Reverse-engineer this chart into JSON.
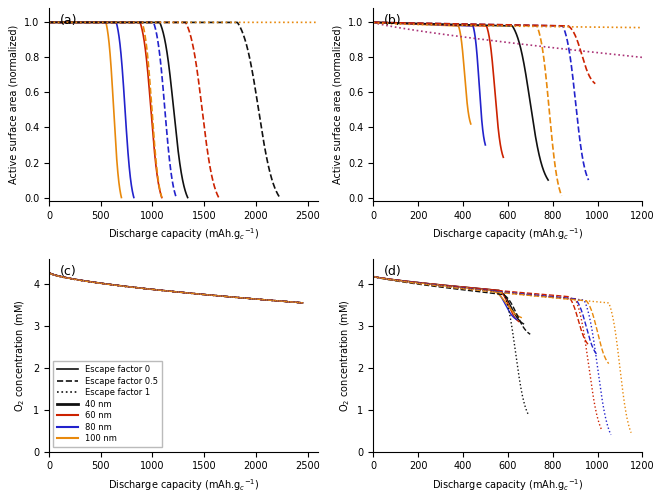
{
  "panel_a": {
    "title": "(a)",
    "xlabel": "Discharge capacity (mAh.g$_c$$^{-1}$)",
    "ylabel": "Active surface area (normalized)",
    "xlim": [
      0,
      2600
    ],
    "ylim": [
      -0.02,
      1.08
    ],
    "xticks": [
      0,
      500,
      1000,
      1500,
      2000,
      2500
    ],
    "yticks": [
      0.0,
      0.2,
      0.4,
      0.6,
      0.8,
      1.0
    ],
    "curves": [
      {
        "color": "#e8890c",
        "ls": "solid",
        "ds": 550,
        "de": 700
      },
      {
        "color": "#2222cc",
        "ls": "solid",
        "ds": 650,
        "de": 820
      },
      {
        "color": "#cc2200",
        "ls": "solid",
        "ds": 880,
        "de": 1090
      },
      {
        "color": "#111111",
        "ls": "solid",
        "ds": 1070,
        "de": 1340
      },
      {
        "color": "#e8890c",
        "ls": "dashed",
        "ds": 900,
        "de": 1090
      },
      {
        "color": "#2222cc",
        "ls": "dashed",
        "ds": 1010,
        "de": 1230
      },
      {
        "color": "#cc2200",
        "ls": "dashed",
        "ds": 1320,
        "de": 1640
      },
      {
        "color": "#111111",
        "ls": "dashed",
        "ds": 1820,
        "de": 2230
      },
      {
        "color": "#e8890c",
        "ls": "dotted",
        "ds": 9999,
        "de": 9999
      }
    ]
  },
  "panel_b": {
    "title": "(b)",
    "xlabel": "Discharge capacity (mAh.g$_c$$^{-1}$)",
    "ylabel": "Active surface area (normalized)",
    "xlim": [
      0,
      1200
    ],
    "ylim": [
      -0.02,
      1.08
    ],
    "xticks": [
      0,
      200,
      400,
      600,
      800,
      1000,
      1200
    ],
    "yticks": [
      0.0,
      0.2,
      0.4,
      0.6,
      0.8,
      1.0
    ],
    "curves_solid": [
      {
        "color": "#e8890c",
        "ds": 380,
        "de": 435,
        "y_end": 0.42
      },
      {
        "color": "#2222cc",
        "ds": 445,
        "de": 500,
        "y_end": 0.3
      },
      {
        "color": "#cc2200",
        "ds": 505,
        "de": 580,
        "y_end": 0.23
      },
      {
        "color": "#111111",
        "ds": 620,
        "de": 780,
        "y_end": 0.1
      }
    ],
    "curves_dashed": [
      {
        "color": "#e8890c",
        "ds": 730,
        "de": 840,
        "y_end": 0.01
      },
      {
        "color": "#2222cc",
        "ds": 845,
        "de": 960,
        "y_end": 0.1
      },
      {
        "color": "#cc2200",
        "ds": 870,
        "de": 990,
        "y_end": 0.65
      }
    ],
    "curves_dotted": [
      {
        "color": "#aa3377",
        "ds": 0,
        "de": 1200,
        "y_end": 0.8
      },
      {
        "color": "#e8890c",
        "ds": 0,
        "de": 1200,
        "y_end": 0.97
      }
    ]
  },
  "panel_c": {
    "title": "(c)",
    "xlabel": "Discharge capacity (mAh.g$_c$$^{-1}$)",
    "ylabel": "O$_2$ concentration (mM)",
    "xlim": [
      0,
      2600
    ],
    "ylim": [
      0,
      4.6
    ],
    "xticks": [
      0,
      500,
      1000,
      1500,
      2000,
      2500
    ],
    "yticks": [
      0,
      1,
      2,
      3,
      4
    ],
    "y_start": 4.28,
    "y_end": 3.55,
    "x_end": 2450
  },
  "panel_d": {
    "title": "(d)",
    "xlabel": "Discharge capacity (mAh.g$_c$$^{-1}$)",
    "ylabel": "O$_2$ concentration (mM)",
    "xlim": [
      0,
      1200
    ],
    "ylim": [
      0,
      4.6
    ],
    "xticks": [
      0,
      200,
      400,
      600,
      800,
      1000,
      1200
    ],
    "yticks": [
      0,
      1,
      2,
      3,
      4
    ],
    "curves": [
      {
        "color": "#111111",
        "ls": "solid",
        "x_end": 670,
        "drop_x": 560,
        "y_flat_end": 3.85,
        "y_end": 3.05
      },
      {
        "color": "#cc2200",
        "ls": "solid",
        "x_end": 650,
        "drop_x": 560,
        "y_flat_end": 3.85,
        "y_end": 3.1
      },
      {
        "color": "#2222cc",
        "ls": "solid",
        "x_end": 640,
        "drop_x": 540,
        "y_flat_end": 3.85,
        "y_end": 3.15
      },
      {
        "color": "#e8890c",
        "ls": "solid",
        "x_end": 660,
        "drop_x": 530,
        "y_flat_end": 3.85,
        "y_end": 3.2
      },
      {
        "color": "#111111",
        "ls": "dashed",
        "x_end": 700,
        "drop_x": 580,
        "y_flat_end": 3.75,
        "y_end": 2.8
      },
      {
        "color": "#cc2200",
        "ls": "dashed",
        "x_end": 960,
        "drop_x": 870,
        "y_flat_end": 3.7,
        "y_end": 2.55
      },
      {
        "color": "#2222cc",
        "ls": "dashed",
        "x_end": 1000,
        "drop_x": 900,
        "y_flat_end": 3.65,
        "y_end": 2.3
      },
      {
        "color": "#e8890c",
        "ls": "dashed",
        "x_end": 1050,
        "drop_x": 950,
        "y_flat_end": 3.6,
        "y_end": 2.1
      },
      {
        "color": "#111111",
        "ls": "dotted",
        "x_end": 690,
        "drop_x": 580,
        "y_flat_end": 3.8,
        "y_end": 0.9
      },
      {
        "color": "#cc2200",
        "ls": "dotted",
        "x_end": 1020,
        "drop_x": 900,
        "y_flat_end": 3.65,
        "y_end": 0.5
      },
      {
        "color": "#2222cc",
        "ls": "dotted",
        "x_end": 1060,
        "drop_x": 940,
        "y_flat_end": 3.62,
        "y_end": 0.4
      },
      {
        "color": "#e8890c",
        "ls": "dotted",
        "x_end": 1150,
        "drop_x": 1050,
        "y_flat_end": 3.55,
        "y_end": 0.45
      }
    ]
  },
  "legend": {
    "items": [
      {
        "label": "Escape factor 0",
        "ls": "solid",
        "color": "#111111"
      },
      {
        "label": "Escape factor 0.5",
        "ls": "dashed",
        "color": "#111111"
      },
      {
        "label": "Escape factor 1",
        "ls": "dotted",
        "color": "#111111"
      },
      {
        "label": "40 nm",
        "ls": "solid",
        "color": "#111111"
      },
      {
        "label": "60 nm",
        "ls": "solid",
        "color": "#cc2200"
      },
      {
        "label": "80 nm",
        "ls": "solid",
        "color": "#2222cc"
      },
      {
        "label": "100 nm",
        "ls": "solid",
        "color": "#e8890c"
      }
    ]
  }
}
